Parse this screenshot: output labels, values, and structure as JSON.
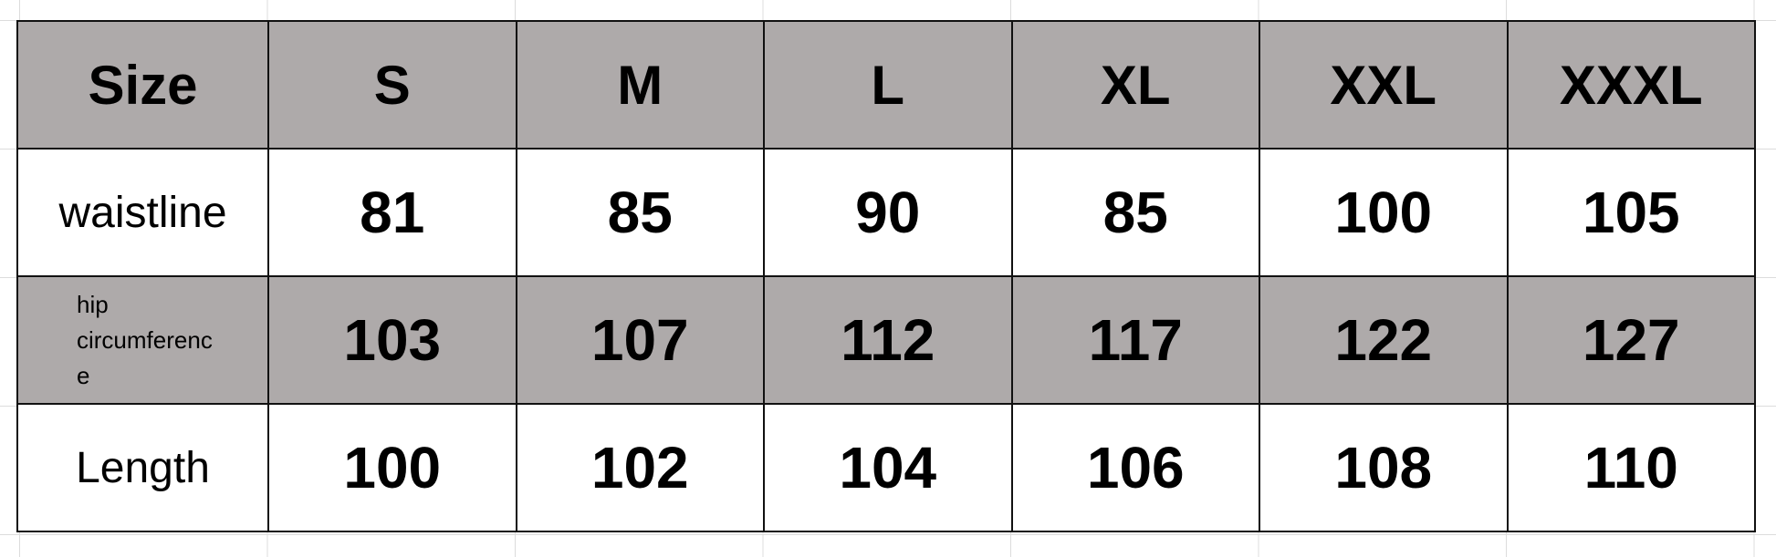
{
  "table": {
    "header": [
      "Size",
      "S",
      "M",
      "L",
      "XL",
      "XXL",
      "XXXL"
    ],
    "rows": [
      {
        "label": "waistline",
        "values": [
          "81",
          "85",
          "90",
          "85",
          "100",
          "105"
        ]
      },
      {
        "label_line1": "hip",
        "label_line2": "circumference",
        "values": [
          "103",
          "107",
          "112",
          "117",
          "122",
          "127"
        ]
      },
      {
        "label": "Length",
        "values": [
          "100",
          "102",
          "104",
          "106",
          "108",
          "110"
        ]
      }
    ]
  },
  "colors": {
    "shaded_row": "#aeaaaa",
    "white_row": "#ffffff",
    "border": "#111111"
  }
}
